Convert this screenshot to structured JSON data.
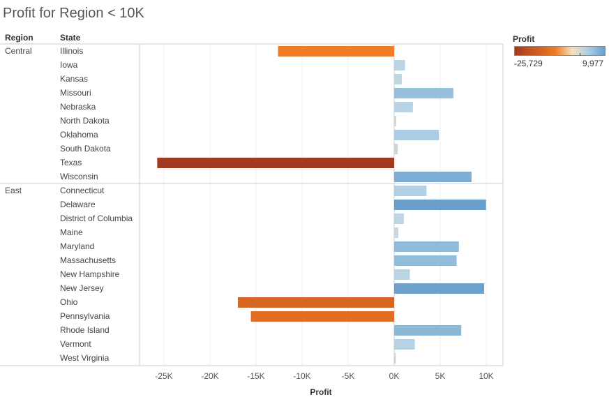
{
  "title": "Profit for Region < 10K",
  "headers": {
    "region": "Region",
    "state": "State"
  },
  "legend": {
    "title": "Profit",
    "min_label": "-25,729",
    "max_label": "9,977",
    "colors": [
      "#a33a1f",
      "#f07a24",
      "#f9e0bf",
      "#a9cde4",
      "#6a9fcb"
    ]
  },
  "chart_data": {
    "type": "bar",
    "orientation": "horizontal",
    "xlabel": "Profit",
    "xlim": [
      -27500,
      11500
    ],
    "xticks": [
      -25000,
      -20000,
      -15000,
      -10000,
      -5000,
      0,
      5000,
      10000
    ],
    "xtick_labels": [
      "-25K",
      "-20K",
      "-15K",
      "-10K",
      "-5K",
      "0K",
      "5K",
      "10K"
    ],
    "grid": true,
    "groups": [
      {
        "region": "Central",
        "states": [
          "Illinois",
          "Iowa",
          "Kansas",
          "Missouri",
          "Nebraska",
          "North Dakota",
          "Oklahoma",
          "South Dakota",
          "Texas",
          "Wisconsin"
        ],
        "values": [
          -12608,
          1184,
          837,
          6436,
          2037,
          230,
          4853,
          395,
          -25729,
          8402
        ]
      },
      {
        "region": "East",
        "states": [
          "Connecticut",
          "Delaware",
          "District of Columbia",
          "Maine",
          "Maryland",
          "Massachusetts",
          "New Hampshire",
          "New Jersey",
          "Ohio",
          "Pennsylvania",
          "Rhode Island",
          "Vermont",
          "West Virginia"
        ],
        "values": [
          3511,
          9977,
          1060,
          454,
          7031,
          6786,
          1707,
          9773,
          -16971,
          -15560,
          7286,
          2245,
          186
        ]
      }
    ]
  }
}
